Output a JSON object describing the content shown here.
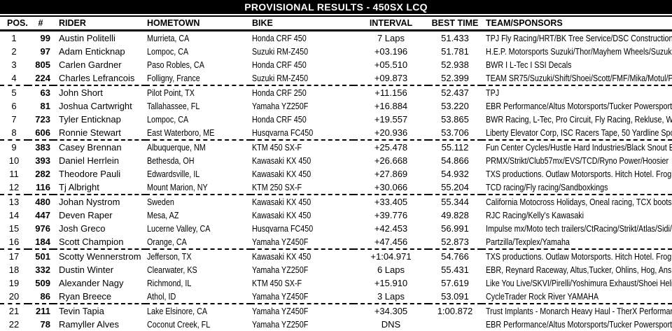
{
  "header": {
    "title": "PROVISIONAL RESULTS - 450SX LCQ"
  },
  "colors": {
    "title_bar_bg": "#000000",
    "title_bar_text": "#ffffff",
    "body_text": "#000000",
    "background": "#ffffff"
  },
  "table": {
    "columns": [
      "POS.",
      "#",
      "RIDER",
      "HOMETOWN",
      "BIKE",
      "INTERVAL",
      "BEST TIME",
      "TEAM/SPONSORS"
    ],
    "rows": [
      {
        "pos": "1",
        "num": "99",
        "rider": "Austin Politelli",
        "hometown": "Murrieta, CA",
        "bike": "Honda CRF 450",
        "interval": "7 Laps",
        "best_time": "51.433",
        "team": "TPJ Fly Racing/HRT/BK Tree Service/DSC Construction.",
        "group_break_after": false
      },
      {
        "pos": "2",
        "num": "97",
        "rider": "Adam Enticknap",
        "hometown": "Lompoc, CA",
        "bike": "Suzuki RM-Z450",
        "interval": "+03.196",
        "best_time": "51.781",
        "team": "H.E.P. Motorsports Suzuki/Thor/Mayhem Wheels/Suzuki",
        "group_break_after": false
      },
      {
        "pos": "3",
        "num": "805",
        "rider": "Carlen Gardner",
        "hometown": "Paso Robles, CA",
        "bike": "Honda CRF 450",
        "interval": "+05.510",
        "best_time": "52.938",
        "team": "BWR I L-Tec I SSI Decals",
        "group_break_after": false
      },
      {
        "pos": "4",
        "num": "224",
        "rider": "Charles Lefrancois",
        "hometown": "Folligny, France",
        "bike": "Suzuki RM-Z450",
        "interval": "+09.873",
        "best_time": "52.399",
        "team": "TEAM SR75/Suzuki/Shift/Shoei/Scott/FMF/Mika/Motul/Pi",
        "group_break_after": true
      },
      {
        "pos": "5",
        "num": "63",
        "rider": "John Short",
        "hometown": "Pilot Point, TX",
        "bike": "Honda CRF 250",
        "interval": "+11.156",
        "best_time": "52.437",
        "team": "TPJ",
        "group_break_after": false
      },
      {
        "pos": "6",
        "num": "81",
        "rider": "Joshua Cartwright",
        "hometown": "Tallahassee, FL",
        "bike": "Yamaha YZ250F",
        "interval": "+16.884",
        "best_time": "53.220",
        "team": "EBR Performance/Altus Motorsports/Tucker Powersports",
        "group_break_after": false
      },
      {
        "pos": "7",
        "num": "723",
        "rider": "Tyler Enticknap",
        "hometown": "Lompoc, CA",
        "bike": "Honda CRF 450",
        "interval": "+19.557",
        "best_time": "53.865",
        "team": "BWR Racing, L-Tec, Pro Circuit, Fly Racing, Rekluse, W",
        "group_break_after": false
      },
      {
        "pos": "8",
        "num": "606",
        "rider": "Ronnie Stewart",
        "hometown": "East Waterboro, ME",
        "bike": "Husqvarna FC450",
        "interval": "+20.936",
        "best_time": "53.706",
        "team": "Liberty Elevator Corp, ISC Racers Tape, 50 Yardline Spo",
        "group_break_after": true
      },
      {
        "pos": "9",
        "num": "383",
        "rider": "Casey Brennan",
        "hometown": "Albuquerque, NM",
        "bike": "KTM 450 SX-F",
        "interval": "+25.478",
        "best_time": "55.112",
        "team": "Fun Center Cycles/Hustle Hard Industries/Black Snout B",
        "group_break_after": false
      },
      {
        "pos": "10",
        "num": "393",
        "rider": "Daniel Herrlein",
        "hometown": "Bethesda, OH",
        "bike": "Kawasaki KX 450",
        "interval": "+26.668",
        "best_time": "54.866",
        "team": "PRMX/Strikt/Club57mx/EVS/TCD/Ryno Power/Hoosier",
        "group_break_after": false
      },
      {
        "pos": "11",
        "num": "282",
        "rider": "Theodore Pauli",
        "hometown": "Edwardsville, IL",
        "bike": "Kawasaki KX 450",
        "interval": "+27.869",
        "best_time": "54.932",
        "team": "TXS productions. Outlaw Motorsports.  Hitch Hotel. Frog",
        "group_break_after": false
      },
      {
        "pos": "12",
        "num": "116",
        "rider": "Tj Albright",
        "hometown": "Mount Marion, NY",
        "bike": "KTM 250 SX-F",
        "interval": "+30.066",
        "best_time": "55.204",
        "team": "TCD racing/Fly racing/Sandboxkings",
        "group_break_after": true
      },
      {
        "pos": "13",
        "num": "480",
        "rider": "Johan Nystrom",
        "hometown": "Sweden",
        "bike": "Kawasaki KX 450",
        "interval": "+33.405",
        "best_time": "55.344",
        "team": "California Motocross Holidays, Oneal racing, TCX boots,",
        "group_break_after": false
      },
      {
        "pos": "14",
        "num": "447",
        "rider": "Deven Raper",
        "hometown": "Mesa, AZ",
        "bike": "Kawasaki KX 450",
        "interval": "+39.776",
        "best_time": "49.828",
        "team": "RJC Racing/Kelly's Kawasaki",
        "group_break_after": false
      },
      {
        "pos": "15",
        "num": "976",
        "rider": "Josh Greco",
        "hometown": "Lucerne Valley, CA",
        "bike": "Husqvarna FC450",
        "interval": "+42.453",
        "best_time": "56.991",
        "team": "Impulse mx/Moto tech trailers/CtRacing/Strikt/Atlas/Sidi/A",
        "group_break_after": false
      },
      {
        "pos": "16",
        "num": "184",
        "rider": "Scott Champion",
        "hometown": "Orange, CA",
        "bike": "Yamaha YZ450F",
        "interval": "+47.456",
        "best_time": "52.873",
        "team": "Partzilla/Texplex/Yamaha",
        "group_break_after": true
      },
      {
        "pos": "17",
        "num": "501",
        "rider": "Scotty Wennerstrom",
        "hometown": "Jefferson, TX",
        "bike": "Kawasaki KX 450",
        "interval": "+1:04.971",
        "best_time": "54.766",
        "team": "TXS productions. Outlaw Motorsports.  Hitch Hotel. Frog",
        "group_break_after": false
      },
      {
        "pos": "18",
        "num": "332",
        "rider": "Dustin Winter",
        "hometown": "Clearwater, KS",
        "bike": "Yamaha YZ250F",
        "interval": "6 Laps",
        "best_time": "55.431",
        "team": "EBR, Reynard Raceway, Altus,Tucker, Ohlins,  Hog, Ans",
        "group_break_after": false
      },
      {
        "pos": "19",
        "num": "509",
        "rider": "Alexander Nagy",
        "hometown": "Richmond, IL",
        "bike": "KTM 450 SX-F",
        "interval": "+15.910",
        "best_time": "57.619",
        "team": "Like You Live/SKVI/Pirelli/Yoshimura Exhaust/Shoei Heli",
        "group_break_after": false
      },
      {
        "pos": "20",
        "num": "86",
        "rider": "Ryan Breece",
        "hometown": "Athol, ID",
        "bike": "Yamaha YZ450F",
        "interval": "3 Laps",
        "best_time": "53.091",
        "team": "CycleTrader Rock River YAMAHA",
        "group_break_after": true
      },
      {
        "pos": "21",
        "num": "211",
        "rider": "Tevin Tapia",
        "hometown": "Lake Elsinore, CA",
        "bike": "Yamaha YZ450F",
        "interval": "+34.305",
        "best_time": "1:00.872",
        "team": "Trust Implants - Monarch Heavy Haul - TherX Performan",
        "group_break_after": false
      },
      {
        "pos": "22",
        "num": "78",
        "rider": "Ramyller Alves",
        "hometown": "Coconut Creek, FL",
        "bike": "Yamaha YZ250F",
        "interval": "DNS",
        "best_time": "",
        "team": "EBR Performance/Altus Motorsports/Tucker Powersports",
        "group_break_after": false
      }
    ]
  }
}
